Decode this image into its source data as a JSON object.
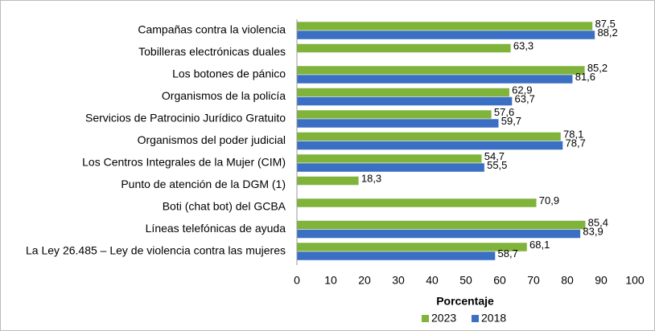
{
  "chart_data": {
    "type": "hbar",
    "categories": [
      "Campañas contra la violencia",
      "Tobilleras electrónicas duales",
      "Los botones de pánico",
      "Organismos de la policía",
      "Servicios de Patrocinio Jurídico Gratuito",
      "Organismos del poder judicial",
      "Los Centros Integrales de la Mujer (CIM)",
      "Punto de atención de la DGM (1)",
      "Boti (chat bot) del GCBA",
      "Líneas telefónicas de ayuda",
      "La Ley 26.485 – Ley de violencia contra las mujeres"
    ],
    "series": [
      {
        "name": "2023",
        "color": "#7fb33a",
        "values": [
          87.5,
          63.3,
          85.2,
          62.9,
          57.6,
          78.1,
          54.7,
          18.3,
          70.9,
          85.4,
          68.1
        ],
        "value_labels": [
          "87,5",
          "63,3",
          "85,2",
          "62,9",
          "57,6",
          "78,1",
          "54,7",
          "18,3",
          "70,9",
          "85,4",
          "68,1"
        ]
      },
      {
        "name": "2018",
        "color": "#3a6fc4",
        "values": [
          88.2,
          null,
          81.6,
          63.7,
          59.7,
          78.7,
          55.5,
          null,
          null,
          83.9,
          58.7
        ],
        "value_labels": [
          "88,2",
          null,
          "81,6",
          "63,7",
          "59,7",
          "78,7",
          "55,5",
          null,
          null,
          "83,9",
          "58,7"
        ]
      }
    ],
    "x_label": "Porcentaje",
    "xlim": [
      0,
      100
    ],
    "xticks": [
      0,
      10,
      20,
      30,
      40,
      50,
      60,
      70,
      80,
      90,
      100
    ],
    "grid": false,
    "legend": "bottom"
  }
}
